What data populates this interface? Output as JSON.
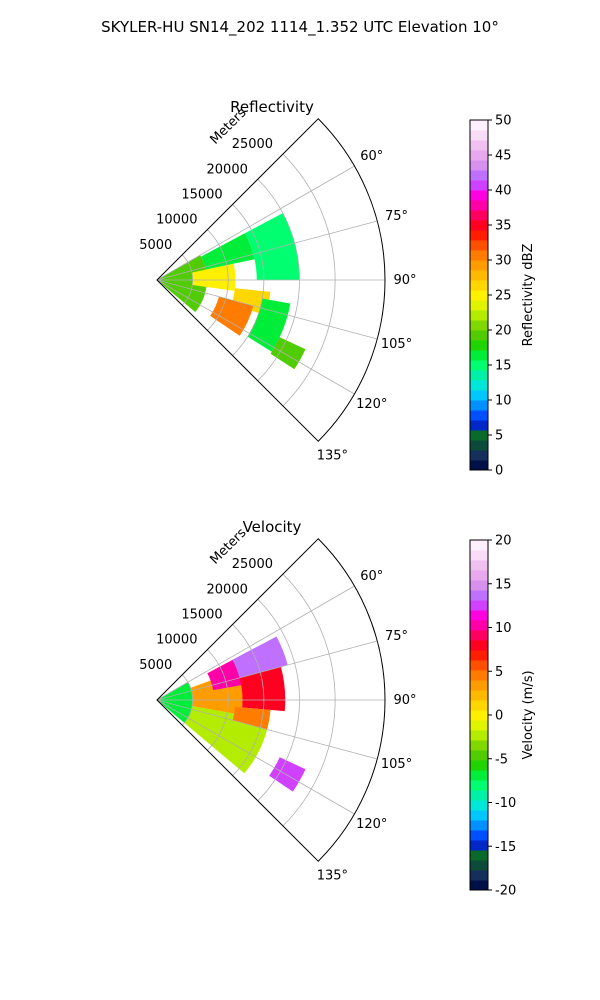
{
  "figure": {
    "suptitle": "SKYLER-HU  SN14_202  1114_1.352 UTC Elevation 10°"
  },
  "chart_data": [
    {
      "type": "polar-sector-radar",
      "title": "Reflectivity",
      "radial_label": "Meters",
      "radial_ticks": [
        5000,
        10000,
        15000,
        20000,
        25000
      ],
      "radial_max": 32000,
      "azimuth_range_deg": [
        45,
        135
      ],
      "azimuth_ticks_deg": [
        60,
        75,
        90,
        105,
        120,
        135
      ],
      "grid": true,
      "colorbar": {
        "label": "Reflectivity dBZ",
        "min": 0,
        "max": 50,
        "ticks": [
          0,
          5,
          10,
          15,
          20,
          25,
          30,
          35,
          40,
          45,
          50
        ],
        "colors": [
          "#001048",
          "#14305a",
          "#0c4a3a",
          "#0a6a2a",
          "#0028c8",
          "#0050ff",
          "#0090ff",
          "#00c8ff",
          "#00e6d8",
          "#00f0a8",
          "#00ff70",
          "#00ee3a",
          "#20d400",
          "#50cc00",
          "#80d800",
          "#b4ec00",
          "#e0f400",
          "#fff000",
          "#ffd600",
          "#ffba00",
          "#ff9c00",
          "#ff7c00",
          "#ff5000",
          "#ff1e00",
          "#ff0020",
          "#ff0060",
          "#ff00a8",
          "#ff00e0",
          "#d040ff",
          "#c070ff",
          "#d890ee",
          "#e8a8ee",
          "#f0c0f0",
          "#f8dcf8",
          "#fff0ff"
        ]
      },
      "echo_regions": [
        {
          "az": [
            60,
            130
          ],
          "r": [
            0,
            7000
          ],
          "value": 19
        },
        {
          "az": [
            62,
            78
          ],
          "r": [
            7000,
            14000
          ],
          "value": 16
        },
        {
          "az": [
            78,
            98
          ],
          "r": [
            5000,
            11000
          ],
          "value": 25
        },
        {
          "az": [
            96,
            108
          ],
          "r": [
            11000,
            16000
          ],
          "value": 27
        },
        {
          "az": [
            105,
            124
          ],
          "r": [
            9000,
            14000
          ],
          "value": 31
        },
        {
          "az": [
            62,
            90
          ],
          "r": [
            14000,
            20000
          ],
          "value": 15
        },
        {
          "az": [
            100,
            122
          ],
          "r": [
            15000,
            19000
          ],
          "value": 17
        },
        {
          "az": [
            115,
            123
          ],
          "r": [
            19000,
            23000
          ],
          "value": 19
        }
      ]
    },
    {
      "type": "polar-sector-radar",
      "title": "Velocity",
      "radial_label": "Meters",
      "radial_ticks": [
        5000,
        10000,
        15000,
        20000,
        25000
      ],
      "radial_max": 32000,
      "azimuth_range_deg": [
        45,
        135
      ],
      "azimuth_ticks_deg": [
        60,
        75,
        90,
        105,
        120,
        135
      ],
      "grid": true,
      "colorbar": {
        "label": "Velocity (m/s)",
        "min": -20,
        "max": 20,
        "ticks": [
          -20,
          -15,
          -10,
          -5,
          0,
          5,
          10,
          15,
          20
        ],
        "colors": [
          "#001048",
          "#14305a",
          "#0c4a3a",
          "#0a6a2a",
          "#0028c8",
          "#0050ff",
          "#0090ff",
          "#00c8ff",
          "#00e6d8",
          "#00f0a8",
          "#00ff70",
          "#00ee3a",
          "#20d400",
          "#50cc00",
          "#80d800",
          "#b4ec00",
          "#e0f400",
          "#fff000",
          "#ffd600",
          "#ffba00",
          "#ff9c00",
          "#ff7c00",
          "#ff5000",
          "#ff1e00",
          "#ff0020",
          "#ff0060",
          "#ff00a8",
          "#ff00e0",
          "#d040ff",
          "#c070ff",
          "#d890ee",
          "#e8a8ee",
          "#f0c0f0",
          "#f8dcf8",
          "#fff0ff"
        ]
      },
      "echo_regions": [
        {
          "az": [
            60,
            130
          ],
          "r": [
            0,
            5000
          ],
          "value": -7
        },
        {
          "az": [
            70,
            100
          ],
          "r": [
            5000,
            12000
          ],
          "value": 3
        },
        {
          "az": [
            100,
            130
          ],
          "r": [
            5000,
            16000
          ],
          "value": -2
        },
        {
          "az": [
            62,
            80
          ],
          "r": [
            8000,
            15000
          ],
          "value": 10
        },
        {
          "az": [
            62,
            75
          ],
          "r": [
            12000,
            19000
          ],
          "value": 14
        },
        {
          "az": [
            75,
            95
          ],
          "r": [
            12000,
            18000
          ],
          "value": 8
        },
        {
          "az": [
            95,
            105
          ],
          "r": [
            11000,
            16000
          ],
          "value": 5
        },
        {
          "az": [
            115,
            124
          ],
          "r": [
            19000,
            23000
          ],
          "value": 12
        }
      ]
    }
  ]
}
